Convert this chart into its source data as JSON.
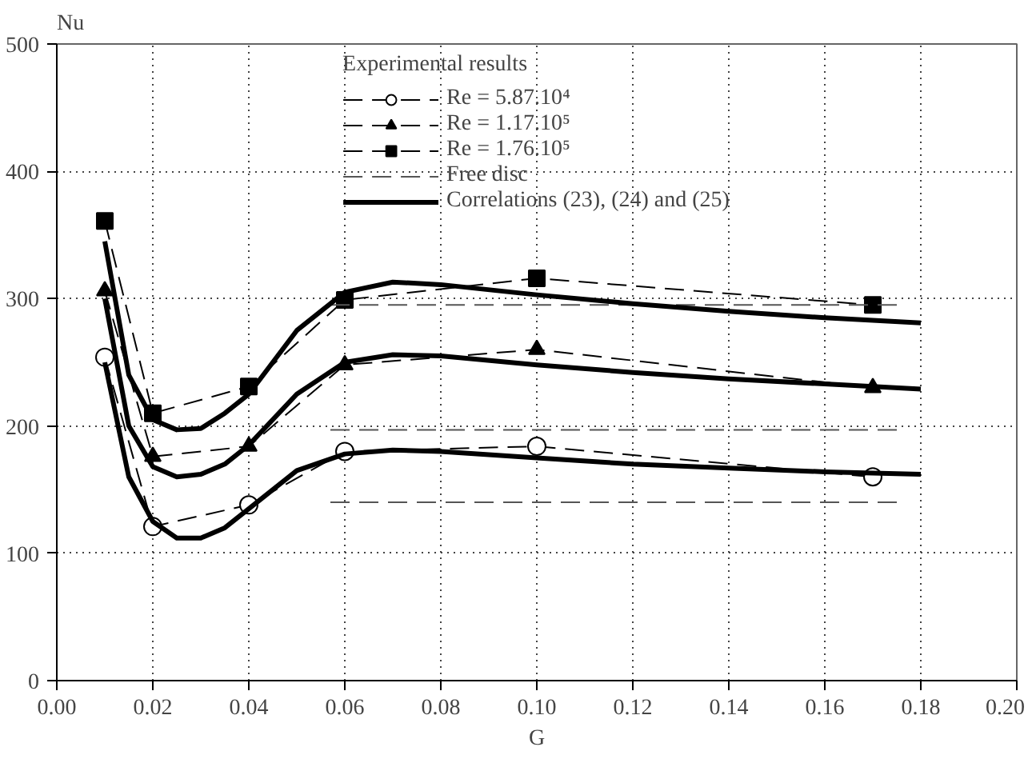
{
  "chart_data": {
    "type": "line",
    "xlabel": "G",
    "ylabel": "Nu",
    "legend_title": "Experimental results",
    "xlim": [
      0,
      0.2
    ],
    "xticks": [
      {
        "value": 0,
        "label": "0.00"
      },
      {
        "value": 0.02,
        "label": "0.02"
      },
      {
        "value": 0.04,
        "label": "0.04"
      },
      {
        "value": 0.06,
        "label": "0.06"
      },
      {
        "value": 0.08,
        "label": "0.08"
      },
      {
        "value": 0.1,
        "label": "0.10"
      },
      {
        "value": 0.12,
        "label": "0.12"
      },
      {
        "value": 0.14,
        "label": "0.14"
      },
      {
        "value": 0.16,
        "label": "0.16"
      },
      {
        "value": 0.18,
        "label": "0.18"
      },
      {
        "value": 0.2,
        "label": "0.20"
      }
    ],
    "ylim": [
      0,
      500
    ],
    "yticks": [
      0,
      100,
      200,
      300,
      400,
      500
    ],
    "grid": true,
    "legend": "top",
    "series": [
      {
        "name": "Re = 5.87.10⁴",
        "color": "#000000",
        "marker": "circle",
        "line_style": "dashed",
        "x": [
          0.01,
          0.02,
          0.04,
          0.06,
          0.1,
          0.17
        ],
        "values": [
          254,
          121,
          138,
          180,
          184,
          160
        ]
      },
      {
        "name": "Re = 1.17.10⁵",
        "color": "#000000",
        "marker": "triangle",
        "line_style": "dashed",
        "x": [
          0.01,
          0.02,
          0.04,
          0.06,
          0.1,
          0.17
        ],
        "values": [
          306,
          176,
          184,
          248,
          260,
          230
        ]
      },
      {
        "name": "Re = 1.76.10⁵",
        "color": "#000000",
        "marker": "square",
        "line_style": "dashed",
        "x": [
          0.01,
          0.02,
          0.04,
          0.06,
          0.1,
          0.17
        ],
        "values": [
          361,
          210,
          231,
          299,
          316,
          295
        ]
      },
      {
        "name": "Free disc",
        "color": "#555555",
        "marker": "none",
        "line_style": "dashed",
        "x": [
          0.057,
          0.175
        ],
        "values": [
          140,
          140
        ]
      },
      {
        "color": "#555555",
        "marker": "none",
        "line_style": "dashed",
        "x": [
          0.057,
          0.175
        ],
        "values": [
          197,
          197
        ]
      },
      {
        "color": "#555555",
        "marker": "none",
        "line_style": "dashed",
        "x": [
          0.057,
          0.175
        ],
        "values": [
          295,
          295
        ]
      },
      {
        "name": "Correlations (23), (24) and (25)",
        "color": "#000000",
        "marker": "none",
        "line_style": "solid",
        "x": [
          0.01,
          0.015,
          0.02,
          0.025,
          0.03,
          0.035,
          0.04,
          0.05,
          0.06,
          0.07,
          0.08,
          0.1,
          0.12,
          0.14,
          0.16,
          0.18
        ],
        "values": [
          250,
          160,
          125,
          112,
          112,
          120,
          135,
          165,
          178,
          181,
          180,
          175,
          170,
          167,
          164,
          162
        ]
      },
      {
        "color": "#000000",
        "marker": "none",
        "line_style": "solid",
        "x": [
          0.01,
          0.015,
          0.02,
          0.025,
          0.03,
          0.035,
          0.04,
          0.05,
          0.06,
          0.07,
          0.08,
          0.1,
          0.12,
          0.14,
          0.16,
          0.18
        ],
        "values": [
          300,
          200,
          168,
          160,
          162,
          170,
          185,
          225,
          250,
          256,
          255,
          248,
          242,
          237,
          233,
          229
        ]
      },
      {
        "color": "#000000",
        "marker": "none",
        "line_style": "solid",
        "x": [
          0.01,
          0.015,
          0.02,
          0.025,
          0.03,
          0.035,
          0.04,
          0.05,
          0.06,
          0.07,
          0.08,
          0.1,
          0.12,
          0.14,
          0.16,
          0.18
        ],
        "values": [
          345,
          240,
          205,
          197,
          198,
          210,
          225,
          275,
          305,
          313,
          311,
          303,
          296,
          290,
          285,
          281
        ]
      }
    ]
  }
}
